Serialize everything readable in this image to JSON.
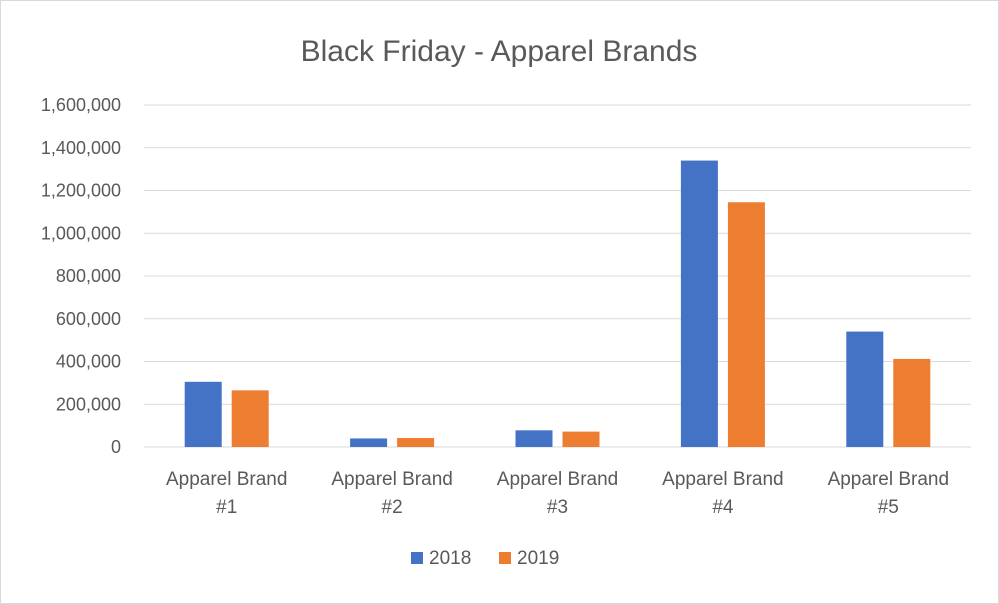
{
  "chart_data": {
    "type": "bar",
    "title": "Black Friday - Apparel Brands",
    "categories": [
      [
        "Apparel Brand",
        "#1"
      ],
      [
        "Apparel Brand",
        "#2"
      ],
      [
        "Apparel Brand",
        "#3"
      ],
      [
        "Apparel Brand",
        "#4"
      ],
      [
        "Apparel Brand",
        "#5"
      ]
    ],
    "series": [
      {
        "name": "2018",
        "color": "#4472c4",
        "values": [
          305000,
          40000,
          78000,
          1340000,
          540000
        ]
      },
      {
        "name": "2019",
        "color": "#ed7d31",
        "values": [
          265000,
          42000,
          72000,
          1145000,
          412000
        ]
      }
    ],
    "ylim": [
      0,
      1600000
    ],
    "yticks": [
      0,
      200000,
      400000,
      600000,
      800000,
      1000000,
      1200000,
      1400000,
      1600000
    ],
    "ytick_labels": [
      "0",
      "200,000",
      "400,000",
      "600,000",
      "800,000",
      "1,000,000",
      "1,200,000",
      "1,400,000",
      "1,600,000"
    ],
    "grid": true,
    "legend": "bottom"
  }
}
